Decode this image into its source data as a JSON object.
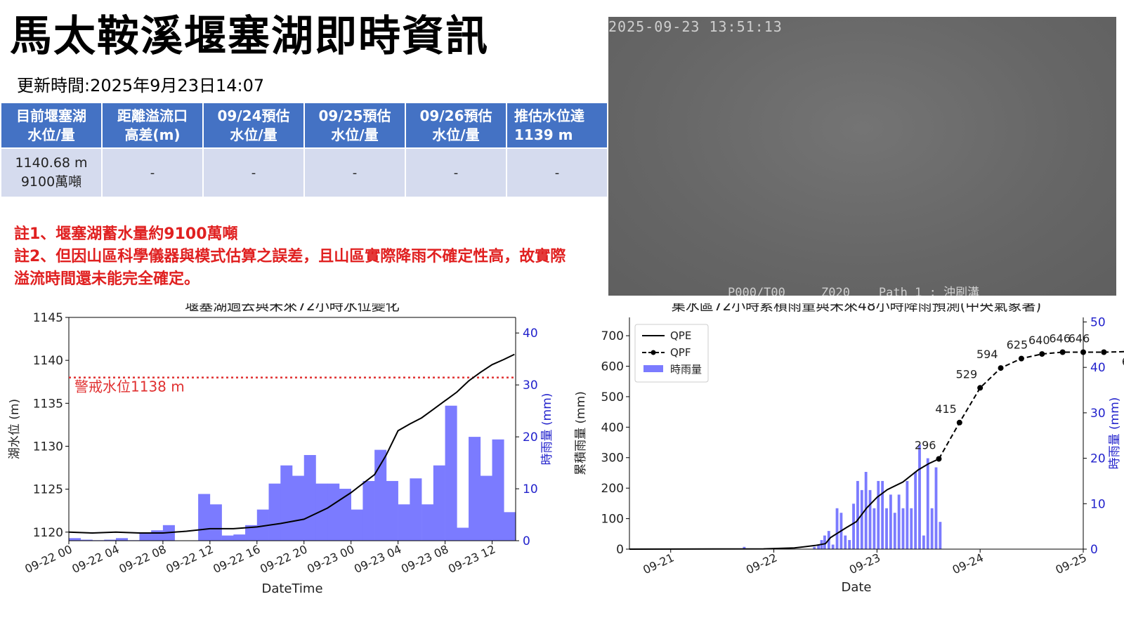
{
  "header": {
    "title": "馬太鞍溪堰塞湖即時資訊",
    "updated": "更新時間:2025年9月23日14:07"
  },
  "table": {
    "headers": [
      [
        "目前堰塞湖",
        "水位/量"
      ],
      [
        "距離溢流口",
        "高差(m)"
      ],
      [
        "09/24預估",
        "水位/量"
      ],
      [
        "09/25預估",
        "水位/量"
      ],
      [
        "09/26預估",
        "水位/量"
      ],
      [
        "推估水位達",
        "1139 m"
      ]
    ],
    "current_level": "1140.68 m",
    "current_volume": "9100萬噸",
    "cells": [
      "-",
      "-",
      "-",
      "-",
      "-"
    ]
  },
  "notes": [
    "註1、堰塞湖蓄水量約9100萬噸",
    "註2、但因山區科學儀器與模式估算之誤差，且山區實際降雨不確定性高，故實際溢流時間還未能完全確定。"
  ],
  "camera": {
    "timestamp": "2025-09-23 13:51:13",
    "osd": "P000/T00     Z020    Path 1 : 沖刷溝"
  },
  "colors": {
    "header_blue": "#4472c4",
    "cell_bg": "#d5dbee",
    "note_red": "#e02020",
    "bar_blue": "#7b7bff",
    "alert_red": "#e03030",
    "axis_blue": "#2222cc"
  },
  "chart_data": [
    {
      "type": "line",
      "title": "堰塞湖過去與未來72小時水位變化",
      "xlabel": "DateTime",
      "ylabel": "湖水位 (m)",
      "y2label": "時雨量 (mm)",
      "ylim": [
        1119,
        1145
      ],
      "y2lim": [
        0,
        43
      ],
      "yticks": [
        1120,
        1125,
        1130,
        1135,
        1140,
        1145
      ],
      "y2ticks": [
        0,
        10,
        20,
        30,
        40
      ],
      "xlim": [
        0,
        38
      ],
      "xticks": [
        0,
        4,
        8,
        12,
        16,
        20,
        24,
        28,
        32,
        36
      ],
      "xtick_labels": [
        "09-22 00",
        "09-22 04",
        "09-22 08",
        "09-22 12",
        "09-22 16",
        "09-22 20",
        "09-23 00",
        "09-23 04",
        "09-23 08",
        "09-23 12"
      ],
      "alert": {
        "value": 1138,
        "label": "警戒水位1138 m"
      },
      "water_level": [
        [
          0,
          1120.0
        ],
        [
          2,
          1119.9
        ],
        [
          4,
          1120.0
        ],
        [
          6,
          1119.9
        ],
        [
          8,
          1119.9
        ],
        [
          10,
          1120.1
        ],
        [
          12,
          1120.4
        ],
        [
          14,
          1120.4
        ],
        [
          16,
          1120.6
        ],
        [
          18,
          1121.0
        ],
        [
          20,
          1121.5
        ],
        [
          22,
          1122.8
        ],
        [
          24,
          1124.6
        ],
        [
          26,
          1126.7
        ],
        [
          27,
          1129.0
        ],
        [
          28,
          1131.8
        ],
        [
          29,
          1132.6
        ],
        [
          30,
          1133.3
        ],
        [
          31,
          1134.3
        ],
        [
          32,
          1135.3
        ],
        [
          33,
          1136.3
        ],
        [
          34,
          1137.6
        ],
        [
          35,
          1138.6
        ],
        [
          36,
          1139.5
        ],
        [
          37,
          1140.1
        ],
        [
          37.9,
          1140.7
        ]
      ],
      "rain": {
        "name": "時雨量",
        "x": [
          0,
          1,
          2,
          3,
          4,
          5,
          6,
          7,
          8,
          9,
          10,
          11,
          12,
          13,
          14,
          15,
          16,
          17,
          18,
          19,
          20,
          21,
          22,
          23,
          24,
          25,
          26,
          27,
          28,
          29,
          30,
          31,
          32,
          33,
          34,
          35,
          36,
          37
        ],
        "values": [
          0.5,
          0.2,
          0.1,
          0.2,
          0.5,
          0.1,
          1.5,
          2,
          3,
          0,
          0,
          9,
          7,
          1,
          1.2,
          3,
          6,
          11,
          14.5,
          12.5,
          16.5,
          11,
          11,
          10,
          6,
          11.5,
          17.5,
          11.5,
          7,
          12,
          7,
          14.5,
          26,
          2.5,
          20,
          12.5,
          19.5,
          5.5
        ]
      }
    },
    {
      "type": "line",
      "title": "集水區72小時累積雨量與未來48小時降雨預測(中央氣象署)",
      "xlabel": "Date",
      "ylabel": "累積雨量 (mm)",
      "y2label": "時雨量 (mm)",
      "ylim": [
        0,
        760
      ],
      "y2lim": [
        0,
        51
      ],
      "yticks": [
        0,
        100,
        200,
        300,
        400,
        500,
        600,
        700
      ],
      "y2ticks": [
        0,
        10,
        20,
        30,
        40,
        50
      ],
      "xlim": [
        -0.4,
        4.0
      ],
      "xticks": [
        0,
        1,
        2,
        3,
        4
      ],
      "xtick_labels": [
        "09-21",
        "09-22",
        "09-23",
        "09-24",
        "09-25"
      ],
      "legend": [
        "QPE",
        "QPF",
        "時雨量"
      ],
      "legend_position": "top-left",
      "qpe": [
        [
          -0.4,
          0
        ],
        [
          0.9,
          1
        ],
        [
          1.2,
          4
        ],
        [
          1.4,
          12
        ],
        [
          1.5,
          18
        ],
        [
          1.55,
          38
        ],
        [
          1.7,
          70
        ],
        [
          1.8,
          90
        ],
        [
          1.9,
          135
        ],
        [
          2.0,
          170
        ],
        [
          2.1,
          195
        ],
        [
          2.25,
          220
        ],
        [
          2.4,
          260
        ],
        [
          2.5,
          280
        ],
        [
          2.6,
          296
        ]
      ],
      "qpf": {
        "x": [
          2.6,
          2.8,
          3.0,
          3.2,
          3.4,
          3.6,
          3.8,
          4.0,
          4.2,
          4.45
        ],
        "values": [
          296,
          415,
          529,
          594,
          625,
          640,
          646,
          646,
          646,
          648
        ]
      },
      "rain": {
        "name": "時雨量",
        "x": [
          0.7,
          1.38,
          1.42,
          1.45,
          1.48,
          1.52,
          1.56,
          1.6,
          1.64,
          1.68,
          1.72,
          1.76,
          1.8,
          1.84,
          1.88,
          1.92,
          1.96,
          2.0,
          2.04,
          2.08,
          2.12,
          2.16,
          2.2,
          2.24,
          2.28,
          2.32,
          2.36,
          2.4,
          2.44,
          2.48,
          2.52,
          2.56,
          2.6
        ],
        "values": [
          0.5,
          0.5,
          1,
          2,
          3,
          4,
          1,
          9,
          8,
          3,
          2,
          10,
          15,
          13,
          17,
          13,
          9,
          15,
          15,
          9,
          12,
          8,
          12,
          9,
          15,
          9,
          17,
          23,
          3,
          20,
          9,
          18,
          6
        ]
      }
    }
  ]
}
